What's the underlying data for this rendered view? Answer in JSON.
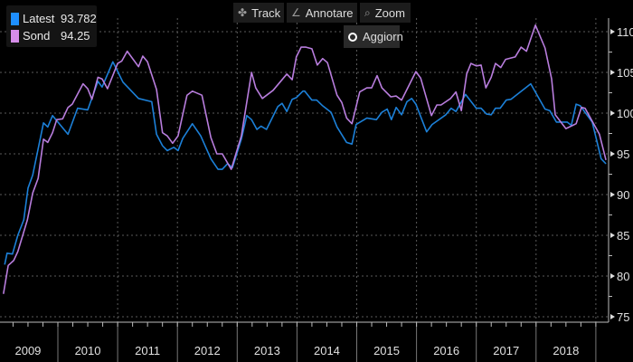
{
  "toolbar": {
    "track": "Track",
    "annotate": "Annotare",
    "zoom": "Zoom",
    "refresh": "Aggiorn"
  },
  "legend": [
    {
      "name": "Latest",
      "value": "93.782",
      "color": "#1e8fff"
    },
    {
      "name": "Sond",
      "value": "94.25",
      "color": "#d68de9"
    }
  ],
  "chart_data": {
    "type": "line",
    "title": "",
    "xlabel": "",
    "ylabel": "",
    "ylim": [
      75,
      110
    ],
    "yticks": [
      75,
      80,
      85,
      90,
      95,
      100,
      105,
      110
    ],
    "xlim": [
      2009.0,
      2019.2
    ],
    "xtick_labels": [
      "2009",
      "2010",
      "2011",
      "2012",
      "2013",
      "2014",
      "2015",
      "2016",
      "2017",
      "2018"
    ],
    "grid": true,
    "legend_position": "top-left",
    "series": [
      {
        "name": "Latest",
        "color": "#1c80d8",
        "points": [
          [
            2009.11,
            81.4
          ],
          [
            2009.15,
            82.8
          ],
          [
            2009.24,
            82.7
          ],
          [
            2009.33,
            85
          ],
          [
            2009.43,
            86.9
          ],
          [
            2009.5,
            90.8
          ],
          [
            2009.58,
            92.4
          ],
          [
            2009.76,
            98.8
          ],
          [
            2009.83,
            98.3
          ],
          [
            2009.91,
            99.7
          ],
          [
            2010.17,
            97.4
          ],
          [
            2010.33,
            100.6
          ],
          [
            2010.5,
            100.4
          ],
          [
            2010.67,
            103.9
          ],
          [
            2010.74,
            103.2
          ],
          [
            2010.92,
            106.3
          ],
          [
            2011.09,
            103.8
          ],
          [
            2011.35,
            101.8
          ],
          [
            2011.57,
            101.4
          ],
          [
            2011.65,
            97.4
          ],
          [
            2011.75,
            96
          ],
          [
            2011.83,
            95.4
          ],
          [
            2011.94,
            95.8
          ],
          [
            2012.01,
            95.4
          ],
          [
            2012.09,
            96.9
          ],
          [
            2012.25,
            98.7
          ],
          [
            2012.39,
            97.2
          ],
          [
            2012.56,
            94.4
          ],
          [
            2012.68,
            93.1
          ],
          [
            2012.75,
            93.1
          ],
          [
            2012.84,
            93.8
          ],
          [
            2012.92,
            93.3
          ],
          [
            2013.07,
            96.8
          ],
          [
            2013.16,
            99.7
          ],
          [
            2013.24,
            99.2
          ],
          [
            2013.33,
            98
          ],
          [
            2013.4,
            98.4
          ],
          [
            2013.49,
            98
          ],
          [
            2013.68,
            100.8
          ],
          [
            2013.75,
            101.2
          ],
          [
            2013.83,
            100.2
          ],
          [
            2013.92,
            101.7
          ],
          [
            2013.99,
            101.9
          ],
          [
            2014.1,
            102.7
          ],
          [
            2014.13,
            102.7
          ],
          [
            2014.25,
            101.6
          ],
          [
            2014.33,
            101.6
          ],
          [
            2014.43,
            100.9
          ],
          [
            2014.57,
            100.1
          ],
          [
            2014.67,
            98.3
          ],
          [
            2014.83,
            96.4
          ],
          [
            2014.92,
            96.2
          ],
          [
            2014.99,
            98.6
          ],
          [
            2015.17,
            99.4
          ],
          [
            2015.33,
            99.2
          ],
          [
            2015.42,
            100.1
          ],
          [
            2015.51,
            100.5
          ],
          [
            2015.58,
            99.2
          ],
          [
            2015.66,
            100.7
          ],
          [
            2015.75,
            99.8
          ],
          [
            2015.84,
            101.4
          ],
          [
            2015.92,
            101.8
          ],
          [
            2015.99,
            101.1
          ],
          [
            2016.17,
            97.7
          ],
          [
            2016.26,
            98.6
          ],
          [
            2016.49,
            99.8
          ],
          [
            2016.58,
            100.6
          ],
          [
            2016.66,
            100.2
          ],
          [
            2016.82,
            102.3
          ],
          [
            2017.0,
            100.6
          ],
          [
            2017.08,
            100.6
          ],
          [
            2017.17,
            99.9
          ],
          [
            2017.25,
            99.8
          ],
          [
            2017.32,
            100.6
          ],
          [
            2017.4,
            100.6
          ],
          [
            2017.5,
            101.6
          ],
          [
            2017.58,
            101.7
          ],
          [
            2017.91,
            103.6
          ],
          [
            2018.15,
            100.5
          ],
          [
            2018.23,
            100.3
          ],
          [
            2018.34,
            98.9
          ],
          [
            2018.52,
            98.9
          ],
          [
            2018.59,
            98.5
          ],
          [
            2018.67,
            101.1
          ],
          [
            2018.74,
            100.9
          ],
          [
            2018.94,
            98.9
          ],
          [
            2019.09,
            94.4
          ],
          [
            2019.17,
            93.78
          ]
        ]
      },
      {
        "name": "Sond",
        "color": "#b87ddd",
        "points": [
          [
            2009.09,
            77.8
          ],
          [
            2009.17,
            81.3
          ],
          [
            2009.26,
            81.9
          ],
          [
            2009.33,
            83
          ],
          [
            2009.49,
            86.9
          ],
          [
            2009.58,
            90.2
          ],
          [
            2009.67,
            92
          ],
          [
            2009.76,
            96.8
          ],
          [
            2009.83,
            96.4
          ],
          [
            2009.91,
            97.6
          ],
          [
            2009.98,
            99.2
          ],
          [
            2010.08,
            99.3
          ],
          [
            2010.17,
            100.7
          ],
          [
            2010.24,
            101.1
          ],
          [
            2010.42,
            103.6
          ],
          [
            2010.5,
            103
          ],
          [
            2010.57,
            101.7
          ],
          [
            2010.67,
            104.4
          ],
          [
            2010.74,
            104.2
          ],
          [
            2010.83,
            103
          ],
          [
            2011.0,
            106.1
          ],
          [
            2011.07,
            106.4
          ],
          [
            2011.16,
            107.6
          ],
          [
            2011.35,
            105.7
          ],
          [
            2011.42,
            107
          ],
          [
            2011.5,
            106.3
          ],
          [
            2011.65,
            102.9
          ],
          [
            2011.75,
            97.6
          ],
          [
            2011.83,
            97.2
          ],
          [
            2011.92,
            96.3
          ],
          [
            2012.01,
            97.2
          ],
          [
            2012.16,
            102.2
          ],
          [
            2012.25,
            102.7
          ],
          [
            2012.41,
            102.2
          ],
          [
            2012.56,
            97
          ],
          [
            2012.66,
            95
          ],
          [
            2012.75,
            95
          ],
          [
            2012.9,
            93.1
          ],
          [
            2013.07,
            97.2
          ],
          [
            2013.24,
            105
          ],
          [
            2013.31,
            103.1
          ],
          [
            2013.42,
            101.8
          ],
          [
            2013.6,
            102.8
          ],
          [
            2013.83,
            104.8
          ],
          [
            2013.92,
            104.1
          ],
          [
            2013.99,
            106.9
          ],
          [
            2014.07,
            108.1
          ],
          [
            2014.15,
            108.1
          ],
          [
            2014.25,
            107.9
          ],
          [
            2014.34,
            105.9
          ],
          [
            2014.43,
            106.7
          ],
          [
            2014.51,
            106.2
          ],
          [
            2014.67,
            102.2
          ],
          [
            2014.75,
            101.3
          ],
          [
            2014.83,
            99.4
          ],
          [
            2014.92,
            98.7
          ],
          [
            2015.05,
            102.6
          ],
          [
            2015.17,
            103.1
          ],
          [
            2015.25,
            103.1
          ],
          [
            2015.34,
            104.6
          ],
          [
            2015.42,
            103.1
          ],
          [
            2015.57,
            102
          ],
          [
            2015.66,
            102.1
          ],
          [
            2015.75,
            101.6
          ],
          [
            2015.99,
            105.1
          ],
          [
            2016.07,
            104.3
          ],
          [
            2016.25,
            99.7
          ],
          [
            2016.34,
            101
          ],
          [
            2016.41,
            101
          ],
          [
            2016.57,
            101.8
          ],
          [
            2016.66,
            102.6
          ],
          [
            2016.75,
            100.3
          ],
          [
            2016.84,
            104.8
          ],
          [
            2016.91,
            106.1
          ],
          [
            2017.0,
            105.8
          ],
          [
            2017.08,
            105.9
          ],
          [
            2017.16,
            103.1
          ],
          [
            2017.25,
            104.4
          ],
          [
            2017.32,
            106.1
          ],
          [
            2017.41,
            105.6
          ],
          [
            2017.49,
            106.6
          ],
          [
            2017.65,
            106.9
          ],
          [
            2017.75,
            108.1
          ],
          [
            2017.84,
            107.6
          ],
          [
            2017.99,
            110.8
          ],
          [
            2018.15,
            108
          ],
          [
            2018.26,
            104.2
          ],
          [
            2018.32,
            99.8
          ],
          [
            2018.5,
            98.1
          ],
          [
            2018.67,
            98.7
          ],
          [
            2018.76,
            100.7
          ],
          [
            2018.82,
            100.6
          ],
          [
            2019.06,
            97.4
          ],
          [
            2019.17,
            94.25
          ]
        ]
      }
    ]
  }
}
